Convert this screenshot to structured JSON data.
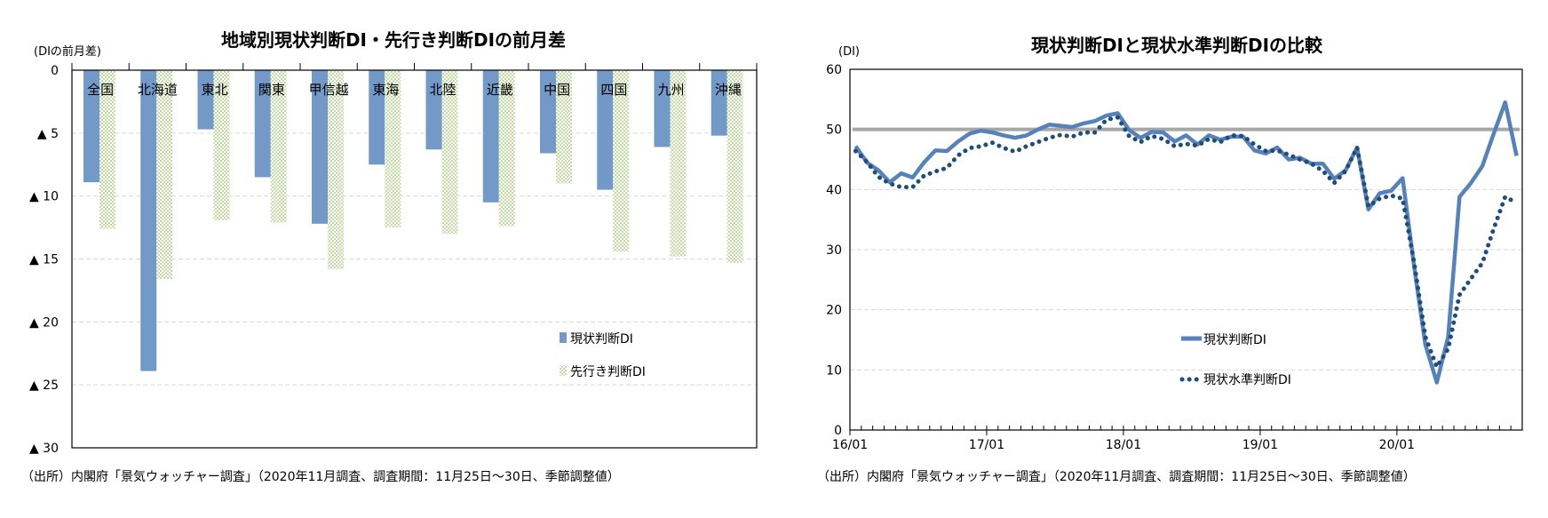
{
  "colors": {
    "bar_current": "#7399c9",
    "bar_outlook_check": "#c3dea3",
    "line_current": "#5682bc",
    "line_level": "#1f4e79",
    "reference_line": "#a6a6a6",
    "grid": "#d9d9d9"
  },
  "chart_data": [
    {
      "type": "bar",
      "title": "地域別現状判断DI・先行き判断DIの前月差",
      "ylabel": "(DIの前月差)",
      "xlabel": "",
      "categories": [
        "全国",
        "北海道",
        "東北",
        "関東",
        "甲信越",
        "東海",
        "北陸",
        "近畿",
        "中国",
        "四国",
        "九州",
        "沖縄"
      ],
      "series": [
        {
          "name": "現状判断DI",
          "values": [
            -8.9,
            -23.9,
            -4.7,
            -8.5,
            -12.2,
            -7.5,
            -6.3,
            -10.5,
            -6.6,
            -9.5,
            -6.1,
            -5.2
          ]
        },
        {
          "name": "先行き判断DI",
          "values": [
            -12.6,
            -16.6,
            -11.9,
            -12.1,
            -15.8,
            -12.5,
            -13.0,
            -12.4,
            -9.0,
            -14.4,
            -14.8,
            -15.3
          ]
        }
      ],
      "ylim": [
        -30,
        0
      ],
      "yticks": [
        0,
        -5,
        -10,
        -15,
        -20,
        -25,
        -30
      ],
      "ytick_labels": [
        "0",
        "▲ 5",
        "▲ 10",
        "▲ 15",
        "▲ 20",
        "▲ 25",
        "▲ 30"
      ],
      "grid": true,
      "legend": "bottom-right",
      "footnote": "（出所）内閣府「景気ウォッチャー調査」（2020年11月調査、調査期間：11月25日～30日、季節調整値）"
    },
    {
      "type": "line",
      "title": "現状判断DIと現状水準判断DIの比較",
      "ylabel": "(DI)",
      "xlabel": "",
      "x": [
        "16/01",
        "16/02",
        "16/03",
        "16/04",
        "16/05",
        "16/06",
        "16/07",
        "16/08",
        "16/09",
        "16/10",
        "16/11",
        "16/12",
        "17/01",
        "17/02",
        "17/03",
        "17/04",
        "17/05",
        "17/06",
        "17/07",
        "17/08",
        "17/09",
        "17/10",
        "17/11",
        "17/12",
        "18/01",
        "18/02",
        "18/03",
        "18/04",
        "18/05",
        "18/06",
        "18/07",
        "18/08",
        "18/09",
        "18/10",
        "18/11",
        "18/12",
        "19/01",
        "19/02",
        "19/03",
        "19/04",
        "19/05",
        "19/06",
        "19/07",
        "19/08",
        "19/09",
        "19/10",
        "19/11",
        "19/12",
        "20/01",
        "20/02",
        "20/03",
        "20/04",
        "20/05",
        "20/06",
        "20/07",
        "20/08",
        "20/09",
        "20/10",
        "20/11"
      ],
      "xtick_labels": [
        "16/01",
        "17/01",
        "18/01",
        "19/01",
        "20/01"
      ],
      "series": [
        {
          "name": "現状判断DI",
          "style": "solid",
          "values": [
            47.2,
            44.5,
            43.2,
            41.2,
            42.7,
            42.0,
            44.5,
            46.5,
            46.4,
            48.0,
            49.3,
            49.8,
            49.5,
            49.0,
            48.6,
            49.0,
            50.0,
            50.8,
            50.6,
            50.4,
            51.0,
            51.4,
            52.3,
            52.7,
            49.9,
            48.6,
            49.6,
            49.5,
            48.0,
            49.0,
            47.5,
            49.0,
            48.3,
            48.8,
            48.8,
            46.5,
            46.0,
            47.0,
            45.0,
            45.3,
            44.3,
            44.3,
            41.8,
            43.2,
            47.0,
            36.7,
            39.4,
            39.8,
            41.9,
            27.4,
            14.2,
            7.9,
            15.5,
            38.8,
            41.1,
            43.9,
            49.3,
            54.5,
            45.6
          ]
        },
        {
          "name": "現状水準判断DI",
          "style": "dotted",
          "values": [
            46.4,
            44.6,
            42.1,
            41.0,
            40.4,
            40.4,
            42.3,
            43.0,
            43.6,
            45.7,
            46.9,
            47.2,
            47.8,
            46.9,
            46.3,
            47.2,
            47.9,
            48.6,
            49.1,
            48.8,
            49.5,
            49.5,
            51.6,
            52.0,
            48.9,
            47.9,
            48.9,
            48.4,
            47.2,
            47.6,
            47.3,
            48.4,
            47.9,
            49.0,
            48.9,
            47.5,
            46.4,
            46.5,
            45.8,
            45.0,
            44.3,
            43.1,
            41.1,
            43.1,
            47.0,
            37.2,
            38.5,
            39.0,
            38.5,
            28.0,
            15.5,
            10.5,
            13.5,
            22.5,
            25.2,
            27.8,
            33.5,
            38.8,
            37.8
          ]
        }
      ],
      "reference_line": 50,
      "ylim": [
        0,
        60
      ],
      "yticks": [
        0,
        10,
        20,
        30,
        40,
        50,
        60
      ],
      "ytick_labels": [
        "0",
        "10",
        "20",
        "30",
        "40",
        "50",
        "60"
      ],
      "grid": true,
      "legend": "bottom-center",
      "footnote": "（出所）内閣府「景気ウォッチャー調査」（2020年11月調査、調査期間：11月25日～30日、季節調整値）"
    }
  ]
}
